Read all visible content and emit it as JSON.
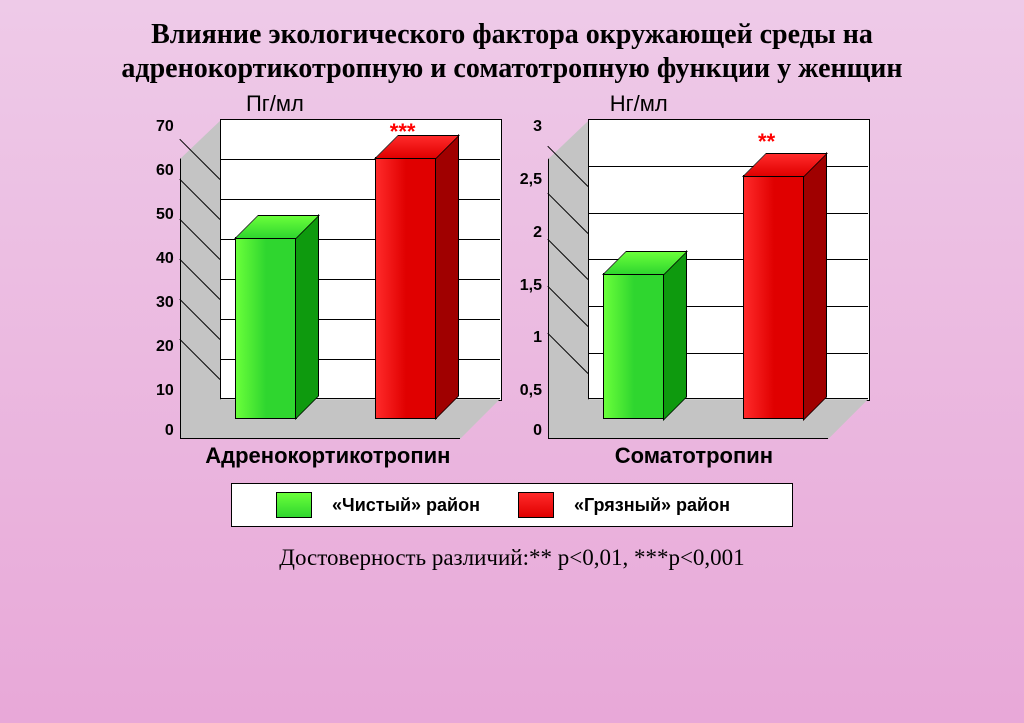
{
  "title": "Влияние экологического  фактора окружающей среды на адренокортикотропную и соматотропную функции у женщин",
  "colors": {
    "clean_front": "#2fd62f",
    "clean_light": "#6aff3a",
    "clean_dark": "#0e9a0e",
    "dirty_front": "#e00000",
    "dirty_light": "#ff2a2a",
    "dirty_dark": "#a00000",
    "sig_text": "#ff0000"
  },
  "charts": [
    {
      "unit": "Пг/мл",
      "xlabel": "Адренокортикотропин",
      "ymax": 70,
      "ystep": 10,
      "values": {
        "clean": 45,
        "dirty": 65
      },
      "yticks": [
        "70",
        "60",
        "50",
        "40",
        "30",
        "20",
        "10",
        "0"
      ],
      "sig": "***",
      "sig_top": 0
    },
    {
      "unit": "Нг/мл",
      "xlabel": "Соматотропин",
      "ymax": 3,
      "ystep": 0.5,
      "values": {
        "clean": 1.55,
        "dirty": 2.6
      },
      "yticks": [
        "3",
        "2,5",
        "2",
        "1,5",
        "1",
        "0,5",
        "0"
      ],
      "sig": "**",
      "sig_top": 10
    }
  ],
  "legend": {
    "clean": "«Чистый» район",
    "dirty": "«Грязный» район"
  },
  "footnote": "Достоверность различий:** p<0,01, ***p<0,001"
}
